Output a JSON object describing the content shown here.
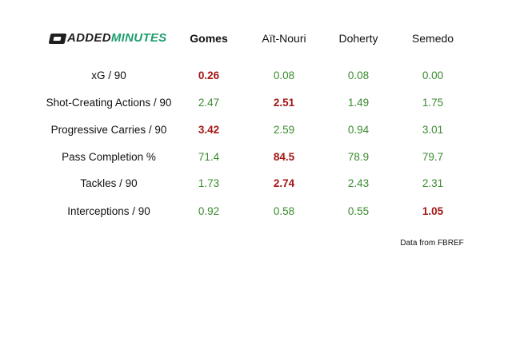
{
  "logo": {
    "part1": "ADDED",
    "part2": "MINUTES"
  },
  "chart_data": {
    "type": "table",
    "players": [
      "Gomes",
      "Aït-Nouri",
      "Doherty",
      "Semedo"
    ],
    "rows": [
      {
        "metric": "xG / 90",
        "values": [
          "0.26",
          "0.08",
          "0.08",
          "0.00"
        ],
        "highlight": 0
      },
      {
        "metric": "Shot-Creating Actions / 90",
        "values": [
          "2.47",
          "2.51",
          "1.49",
          "1.75"
        ],
        "highlight": 1
      },
      {
        "metric": "Progressive Carries / 90",
        "values": [
          "3.42",
          "2.59",
          "0.94",
          "3.01"
        ],
        "highlight": 0
      },
      {
        "metric": "Pass Completion %",
        "values": [
          "71.4",
          "84.5",
          "78.9",
          "79.7"
        ],
        "highlight": 1
      },
      {
        "metric": "Tackles / 90",
        "values": [
          "1.73",
          "2.74",
          "2.43",
          "2.31"
        ],
        "highlight": 1
      },
      {
        "metric": "Interceptions / 90",
        "values": [
          "0.92",
          "0.58",
          "0.55",
          "1.05"
        ],
        "highlight": 3
      }
    ],
    "source": "Data from FBREF"
  },
  "colors": {
    "normal_value": "#3a8a2e",
    "highlight_value": "#a31515",
    "brand_green": "#1d9e6e"
  }
}
